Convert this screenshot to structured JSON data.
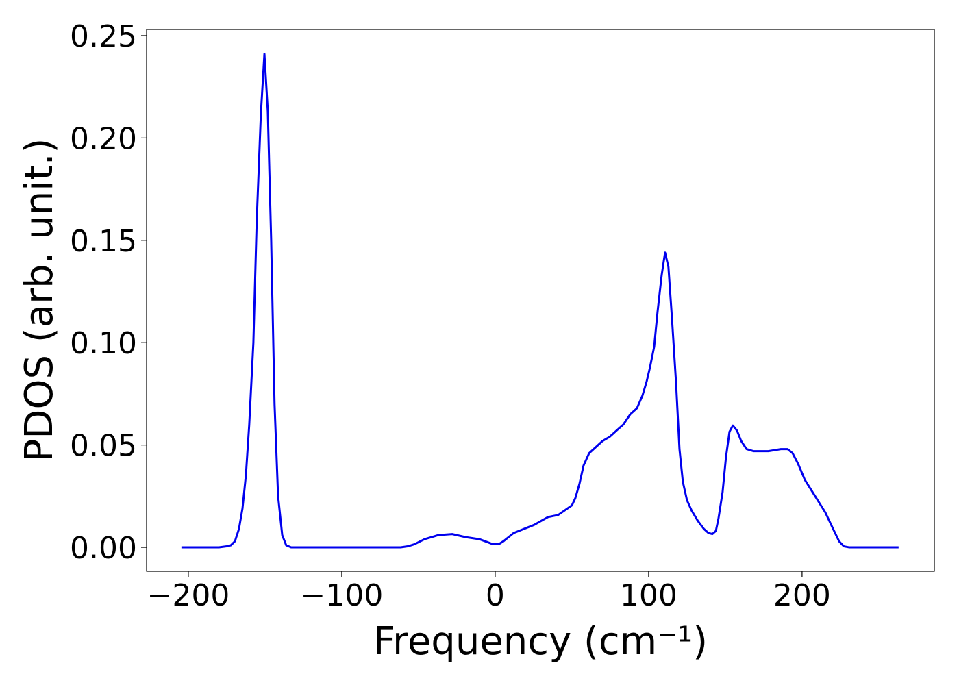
{
  "chart_data": {
    "type": "line",
    "x_label": "Frequency (cm⁻¹)",
    "y_label": "PDOS (arb. unit.)",
    "color": "#0000ee",
    "x": [
      -204.5,
      -180,
      -175,
      -172.3,
      -169.6,
      -167,
      -164.7,
      -162.5,
      -160.3,
      -157.6,
      -155.4,
      -152.7,
      -150.4,
      -148.2,
      -146,
      -143.8,
      -141.5,
      -138.8,
      -136.2,
      -133,
      -61.6,
      -57,
      -52.7,
      -46,
      -37,
      -28,
      -19.2,
      -10.3,
      -1.3,
      2.2,
      5.4,
      12,
      25.4,
      34.4,
      41,
      50,
      52.2,
      54.9,
      57.6,
      61.2,
      65.6,
      70,
      74.6,
      79,
      83.5,
      88,
      92.4,
      95.9,
      98.7,
      100.9,
      103.6,
      105.8,
      108.5,
      110.7,
      112.9,
      115.2,
      117.9,
      120.1,
      122.3,
      125,
      128,
      132,
      136,
      139,
      141.5,
      143.8,
      145.5,
      148.2,
      150.4,
      152.7,
      154.9,
      157.6,
      160.3,
      163.8,
      168.3,
      178,
      186.2,
      190.6,
      193.8,
      197.3,
      201.8,
      208.5,
      215.2,
      219.6,
      224.1,
      227.2,
      230.8,
      262.9
    ],
    "values": [
      0,
      0,
      0.0005,
      0.001,
      0.003,
      0.009,
      0.019,
      0.035,
      0.06,
      0.1,
      0.16,
      0.212,
      0.241,
      0.213,
      0.15,
      0.07,
      0.025,
      0.006,
      0.001,
      0,
      0,
      0.0005,
      0.0015,
      0.004,
      0.006,
      0.0065,
      0.005,
      0.004,
      0.0015,
      0.0015,
      0.003,
      0.007,
      0.011,
      0.0148,
      0.0158,
      0.0205,
      0.024,
      0.031,
      0.04,
      0.046,
      0.049,
      0.052,
      0.054,
      0.057,
      0.06,
      0.065,
      0.068,
      0.074,
      0.081,
      0.088,
      0.098,
      0.115,
      0.133,
      0.144,
      0.137,
      0.112,
      0.08,
      0.048,
      0.032,
      0.023,
      0.018,
      0.013,
      0.009,
      0.007,
      0.0065,
      0.008,
      0.014,
      0.027,
      0.044,
      0.0565,
      0.0595,
      0.057,
      0.052,
      0.048,
      0.047,
      0.047,
      0.048,
      0.048,
      0.046,
      0.041,
      0.033,
      0.025,
      0.017,
      0.01,
      0.003,
      0.0005,
      0,
      0
    ],
    "xlim": [
      -227.2,
      286.2
    ],
    "ylim": [
      -0.0117,
      0.253
    ],
    "xticks": [
      {
        "value": -200,
        "label": "−200"
      },
      {
        "value": -100,
        "label": "−100"
      },
      0,
      100,
      200
    ],
    "yticks": [
      {
        "value": 0,
        "label": "0.00"
      },
      {
        "value": 0.05,
        "label": "0.05"
      },
      {
        "value": 0.1,
        "label": "0.10"
      },
      {
        "value": 0.15,
        "label": "0.15"
      },
      {
        "value": 0.2,
        "label": "0.20"
      },
      {
        "value": 0.25,
        "label": "0.25"
      }
    ]
  }
}
